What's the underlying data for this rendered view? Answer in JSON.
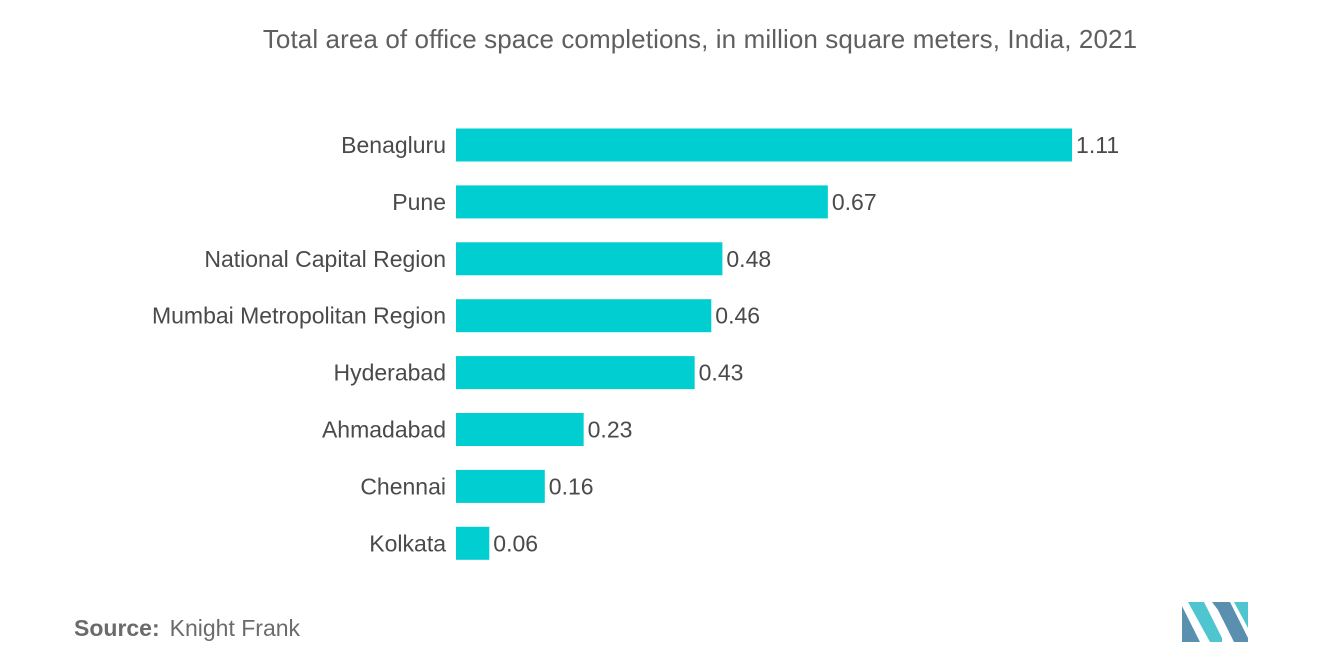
{
  "chart_data": {
    "type": "bar",
    "orientation": "horizontal",
    "title": "Total area of office space completions, in million square meters, India, 2021",
    "categories": [
      "Benagluru",
      "Pune",
      "National Capital Region",
      "Mumbai Metropolitan Region",
      "Hyderabad",
      "Ahmadabad",
      "Chennai",
      "Kolkata"
    ],
    "values": [
      1.11,
      0.67,
      0.48,
      0.46,
      0.43,
      0.23,
      0.16,
      0.06
    ],
    "value_labels": [
      "1.11",
      "0.67",
      "0.48",
      "0.46",
      "0.43",
      "0.23",
      "0.16",
      "0.06"
    ],
    "bar_color": "#00ced1",
    "grid": false,
    "legend": "none"
  },
  "source": {
    "label": "Source:",
    "text": "Knight Frank"
  },
  "colors": {
    "text": "#4a4a4a",
    "title": "#5f5f5f",
    "logo_dark": "#5b8fb0",
    "logo_light": "#4fc6cf"
  }
}
